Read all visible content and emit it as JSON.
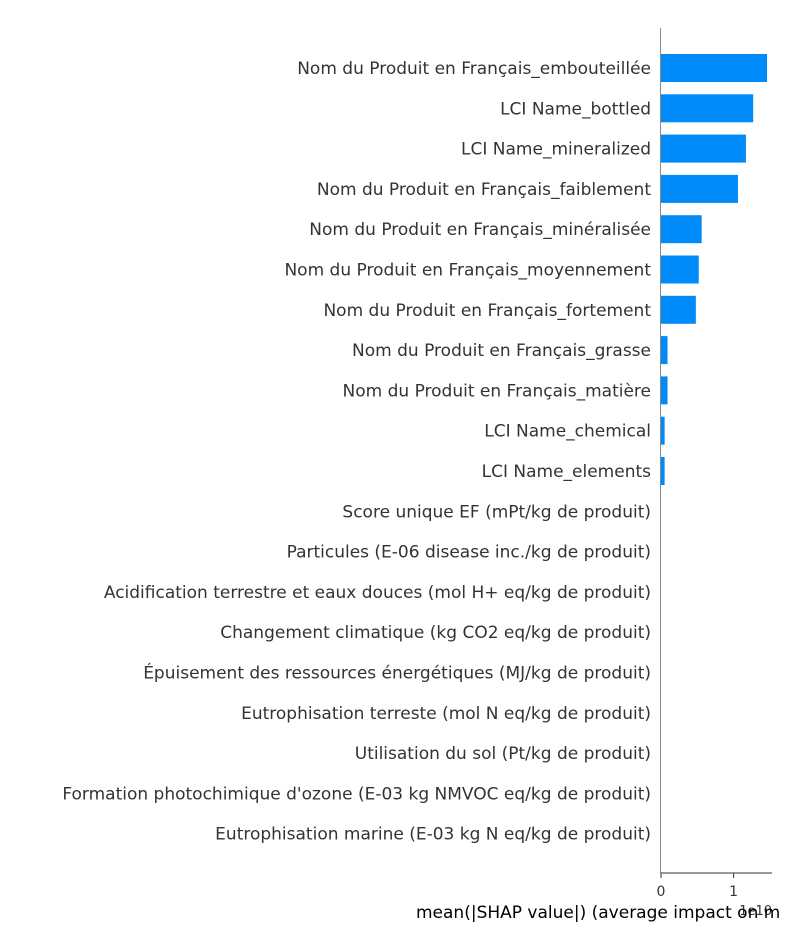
{
  "chart_data": {
    "type": "bar",
    "orientation": "horizontal",
    "categories": [
      "Nom du Produit en Français_embouteillée",
      "LCI Name_bottled",
      "LCI Name_mineralized",
      "Nom du Produit en Français_faiblement",
      "Nom du Produit en Français_minéralisée",
      "Nom du Produit en Français_moyennement",
      "Nom du Produit en Français_fortement",
      "Nom du Produit en Français_grasse",
      "Nom du Produit en Français_matière",
      "LCI Name_chemical",
      "LCI Name_elements",
      "Score unique EF (mPt/kg de produit)",
      "Particules (E-06 disease inc./kg de produit)",
      "Acidification terrestre et eaux douces (mol H+ eq/kg de produit)",
      "Changement climatique (kg CO2 eq/kg de produit)",
      "Épuisement des ressources énergétiques (MJ/kg de produit)",
      "Eutrophisation terreste (mol N eq/kg de produit)",
      "Utilisation du sol (Pt/kg de produit)",
      "Formation photochimique d'ozone (E-03 kg NMVOC eq/kg de produit)",
      "Eutrophisation marine (E-03 kg N eq/kg de produit)"
    ],
    "values": [
      1.46,
      1.27,
      1.17,
      1.06,
      0.56,
      0.52,
      0.48,
      0.09,
      0.09,
      0.05,
      0.05,
      0,
      0,
      0,
      0,
      0,
      0,
      0,
      0,
      0
    ],
    "xlabel": "mean(|SHAP value|) (average impact on m",
    "xlim": [
      0,
      1.53
    ],
    "xticks": [
      0,
      1
    ],
    "xtick_labels": [
      "0",
      "1"
    ],
    "offset_text": "1e10",
    "bar_color": "#008bfb",
    "grid": false
  }
}
